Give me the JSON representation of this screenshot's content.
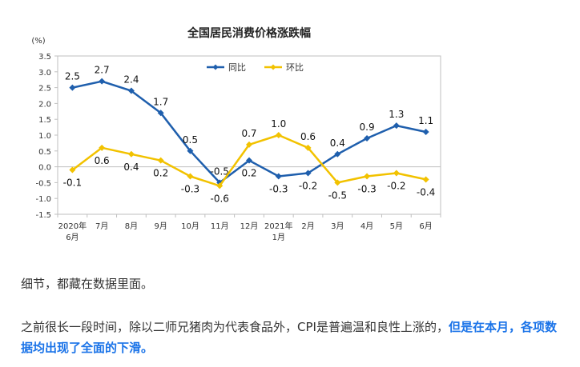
{
  "chart_data": {
    "type": "line",
    "title": "全国居民消费价格涨跌幅",
    "ylabel": "(%)",
    "ylim": [
      -1.5,
      3.5
    ],
    "yticks": [
      "3.5",
      "3.0",
      "2.5",
      "2.0",
      "1.5",
      "1.0",
      "0.5",
      "0.0",
      "-0.5",
      "-1.0",
      "-1.5"
    ],
    "categories": [
      "2020年\n6月",
      "7月",
      "8月",
      "9月",
      "10月",
      "11月",
      "12月",
      "2021年\n1月",
      "2月",
      "3月",
      "4月",
      "5月",
      "6月"
    ],
    "legend_position": "top-center",
    "grid": false,
    "series": [
      {
        "name": "同比",
        "color": "#1f5fad",
        "values": [
          2.5,
          2.7,
          2.4,
          1.7,
          0.5,
          -0.5,
          0.2,
          -0.3,
          -0.2,
          0.4,
          0.9,
          1.3,
          1.1
        ],
        "labels": [
          "2.5",
          "2.7",
          "2.4",
          "1.7",
          "0.5",
          "-0.5",
          "0.2",
          "-0.3",
          "-0.2",
          "0.4",
          "0.9",
          "1.3",
          "1.1"
        ]
      },
      {
        "name": "环比",
        "color": "#f2c200",
        "values": [
          -0.1,
          0.6,
          0.4,
          0.2,
          -0.3,
          -0.6,
          0.7,
          1.0,
          0.6,
          -0.5,
          -0.3,
          -0.2,
          -0.4
        ],
        "labels": [
          "-0.1",
          "0.6",
          "0.4",
          "0.2",
          "-0.3",
          "-0.6",
          "0.7",
          "1.0",
          "0.6",
          "-0.5",
          "-0.3",
          "-0.2",
          "-0.4"
        ]
      }
    ]
  },
  "article": {
    "p1": "细节，都藏在数据里面。",
    "p2_normal": "之前很长一段时间，除以二师兄猪肉为代表食品外，CPI是普遍温和良性上涨的，",
    "p2_highlight": "但是在本月，各项数据均出现了全面的下滑。"
  }
}
